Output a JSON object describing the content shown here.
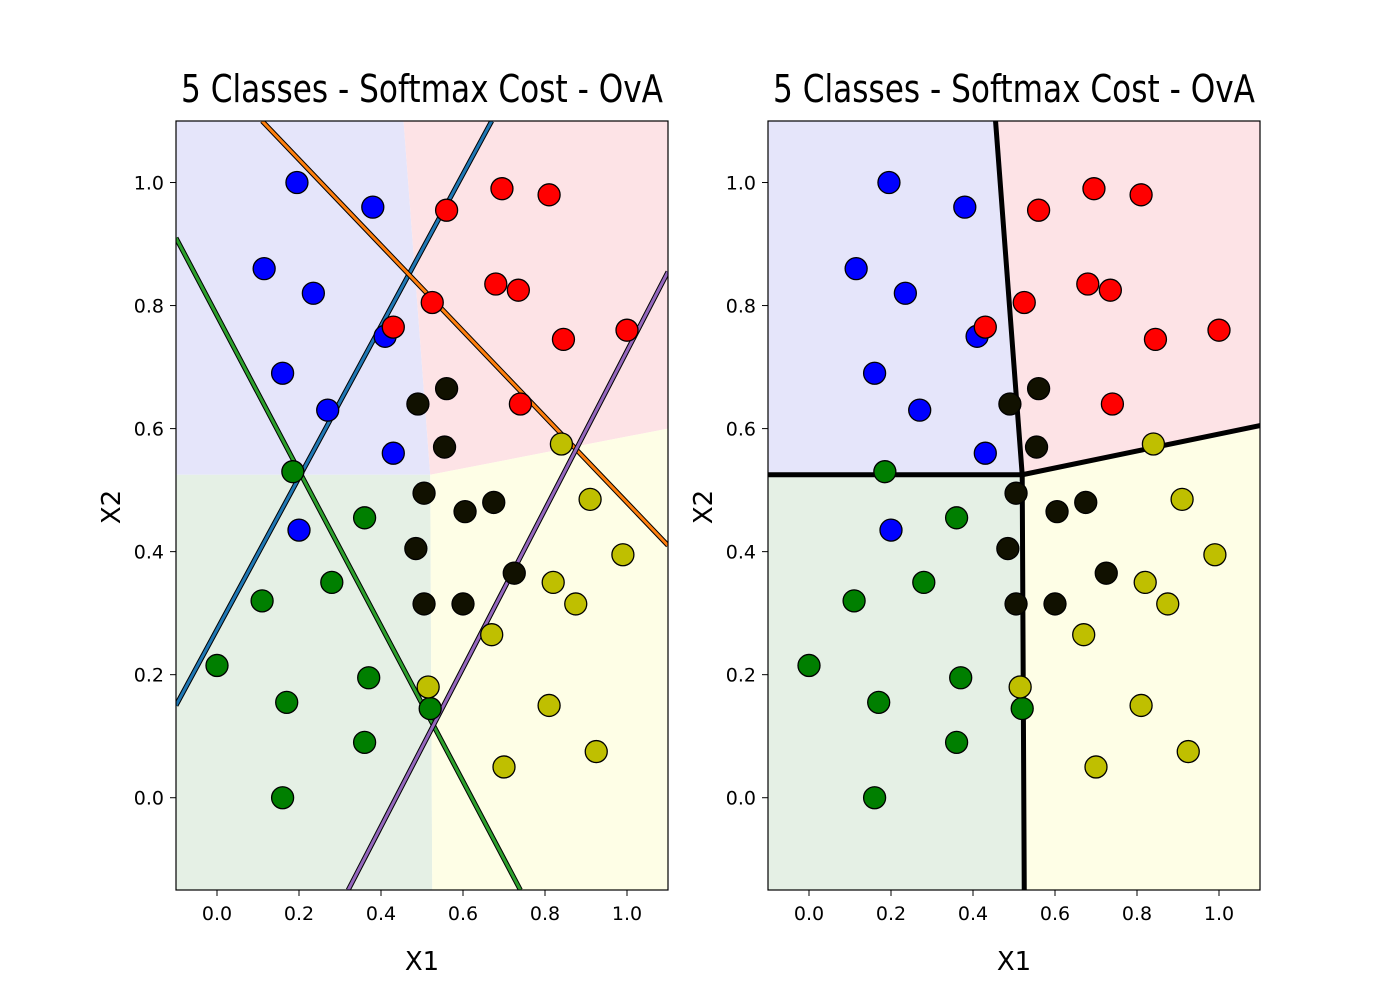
{
  "colors": {
    "region_blue": "#e5e5fa",
    "region_red": "#fde3e6",
    "region_green": "#e5f0e5",
    "region_yellow": "#fefee6",
    "point_blue": "#0000ff",
    "point_red": "#ff0000",
    "point_green": "#007f00",
    "point_yellow": "#bfbf00",
    "point_dark": "#111100",
    "line_blue": "#1f77b4",
    "line_orange": "#ff7f0e",
    "line_green": "#2ca02c",
    "line_purple": "#9467bd",
    "boundary_black": "#000000"
  },
  "chart_data": [
    {
      "type": "scatter",
      "title": "5 Classes - Softmax Cost - OvA",
      "xlabel": "X1",
      "ylabel": "X2",
      "xlim": [
        -0.1,
        1.1
      ],
      "ylim": [
        -0.15,
        1.1
      ],
      "xticks": [
        "0.0",
        "0.2",
        "0.4",
        "0.6",
        "0.8",
        "1.0"
      ],
      "yticks": [
        "0.0",
        "0.2",
        "0.4",
        "0.6",
        "0.8",
        "1.0"
      ],
      "boundary_style": "ova_lines"
    },
    {
      "type": "scatter",
      "title": "5 Classes - Softmax Cost - OvA",
      "xlabel": "X1",
      "ylabel": "X2",
      "xlim": [
        -0.1,
        1.1
      ],
      "ylim": [
        -0.15,
        1.1
      ],
      "xticks": [
        "0.0",
        "0.2",
        "0.4",
        "0.6",
        "0.8",
        "1.0"
      ],
      "yticks": [
        "0.0",
        "0.2",
        "0.4",
        "0.6",
        "0.8",
        "1.0"
      ],
      "boundary_style": "fused"
    }
  ],
  "shared_data": {
    "regions": [
      {
        "color": "region_blue",
        "points": [
          [
            -0.1,
            1.1
          ],
          [
            0.455,
            1.1
          ],
          [
            0.52,
            0.525
          ],
          [
            -0.1,
            0.525
          ]
        ]
      },
      {
        "color": "region_red",
        "points": [
          [
            0.455,
            1.1
          ],
          [
            1.1,
            1.1
          ],
          [
            1.1,
            0.6
          ],
          [
            0.52,
            0.525
          ]
        ]
      },
      {
        "color": "region_green",
        "points": [
          [
            -0.1,
            0.525
          ],
          [
            0.52,
            0.525
          ],
          [
            0.525,
            -0.15
          ],
          [
            -0.1,
            -0.15
          ]
        ]
      },
      {
        "color": "region_yellow",
        "points": [
          [
            0.52,
            0.525
          ],
          [
            1.1,
            0.6
          ],
          [
            1.1,
            -0.15
          ],
          [
            0.525,
            -0.15
          ]
        ]
      }
    ],
    "ova_lines": [
      {
        "color": "line_blue",
        "p1": [
          -0.1,
          0.15
        ],
        "p2": [
          0.67,
          1.1
        ]
      },
      {
        "color": "line_orange",
        "p1": [
          0.11,
          1.1
        ],
        "p2": [
          1.1,
          0.41
        ]
      },
      {
        "color": "line_green",
        "p1": [
          -0.1,
          0.91
        ],
        "p2": [
          0.74,
          -0.15
        ]
      },
      {
        "color": "line_purple",
        "p1": [
          0.32,
          -0.15
        ],
        "p2": [
          1.1,
          0.855
        ]
      }
    ],
    "fused_boundaries": [
      [
        [
          0.455,
          1.1
        ],
        [
          0.52,
          0.525
        ]
      ],
      [
        [
          -0.1,
          0.525
        ],
        [
          0.52,
          0.525
        ]
      ],
      [
        [
          0.52,
          0.525
        ],
        [
          1.1,
          0.605
        ]
      ],
      [
        [
          0.52,
          0.525
        ],
        [
          0.525,
          -0.15
        ]
      ]
    ],
    "series": [
      {
        "name": "",
        "color": "point_blue",
        "x": [
          0.195,
          0.38,
          0.115,
          0.235,
          0.16,
          0.27,
          0.41,
          0.43,
          0.2
        ],
        "y": [
          1.0,
          0.96,
          0.86,
          0.82,
          0.69,
          0.63,
          0.75,
          0.56,
          0.435
        ]
      },
      {
        "name": "",
        "color": "point_red",
        "x": [
          0.695,
          0.81,
          0.56,
          0.68,
          0.735,
          0.525,
          0.43,
          0.845,
          1.0,
          0.74
        ],
        "y": [
          0.99,
          0.98,
          0.955,
          0.835,
          0.825,
          0.805,
          0.765,
          0.745,
          0.76,
          0.64
        ]
      },
      {
        "name": "",
        "color": "point_green",
        "x": [
          0.185,
          0.36,
          0.11,
          0.28,
          0.0,
          0.17,
          0.37,
          0.36,
          0.16,
          0.52
        ],
        "y": [
          0.53,
          0.455,
          0.32,
          0.35,
          0.215,
          0.155,
          0.195,
          0.09,
          0.0,
          0.145
        ]
      },
      {
        "name": "",
        "color": "point_yellow",
        "x": [
          0.84,
          0.91,
          0.99,
          0.82,
          0.875,
          0.67,
          0.515,
          0.81,
          0.925,
          0.7
        ],
        "y": [
          0.575,
          0.485,
          0.395,
          0.35,
          0.315,
          0.265,
          0.18,
          0.15,
          0.075,
          0.05
        ]
      },
      {
        "name": "",
        "color": "point_dark",
        "x": [
          0.56,
          0.49,
          0.555,
          0.505,
          0.605,
          0.675,
          0.485,
          0.725,
          0.505,
          0.6
        ],
        "y": [
          0.665,
          0.64,
          0.57,
          0.495,
          0.465,
          0.48,
          0.405,
          0.365,
          0.315,
          0.315
        ]
      }
    ]
  }
}
